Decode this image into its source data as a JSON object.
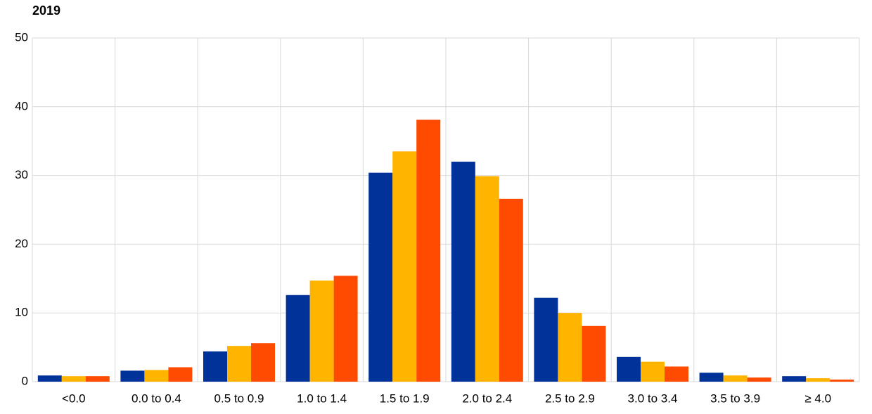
{
  "chart_data": {
    "type": "bar",
    "title": "2019",
    "categories": [
      "<0.0",
      "0.0 to 0.4",
      "0.5 to 0.9",
      "1.0 to 1.4",
      "1.5 to 1.9",
      "2.0 to 2.4",
      "2.5 to 2.9",
      "3.0 to 3.4",
      "3.5 to 3.9",
      "≥ 4.0"
    ],
    "series": [
      {
        "color": "#003299",
        "values": [
          0.9,
          1.6,
          4.4,
          12.6,
          30.4,
          32.0,
          12.2,
          3.6,
          1.3,
          0.8
        ]
      },
      {
        "color": "#ffb400",
        "values": [
          0.8,
          1.7,
          5.2,
          14.7,
          33.5,
          29.9,
          10.0,
          2.9,
          0.9,
          0.5
        ]
      },
      {
        "color": "#ff4b00",
        "values": [
          0.8,
          2.1,
          5.6,
          15.4,
          38.1,
          26.6,
          8.1,
          2.2,
          0.6,
          0.3
        ]
      }
    ],
    "ylim": [
      0,
      50
    ],
    "yticks": [
      0,
      10,
      20,
      30,
      40,
      50
    ],
    "grid": true
  }
}
